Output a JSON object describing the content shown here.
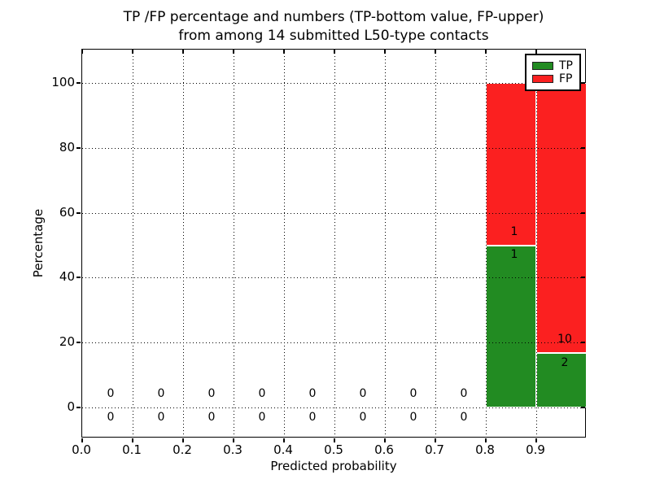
{
  "figure": {
    "background": "#ffffff",
    "accent_black": "#000000"
  },
  "chart_data": {
    "type": "bar",
    "subtype": "stacked-histogram",
    "title_lines": [
      "TP /FP percentage and numbers (TP-bottom value, FP-upper)",
      "from among 14 submitted L50-type contacts"
    ],
    "xlabel": "Predicted probability",
    "ylabel": "Percentage",
    "total_contacts": 14,
    "xlim": [
      0.0,
      1.0
    ],
    "ylim": [
      -9.6,
      110.3
    ],
    "xticks": {
      "values": [
        0.0,
        0.1,
        0.2,
        0.3,
        0.4,
        0.5,
        0.6,
        0.7,
        0.8,
        0.9
      ],
      "labels": [
        "0.0",
        "0.1",
        "0.2",
        "0.3",
        "0.4",
        "0.5",
        "0.6",
        "0.7",
        "0.8",
        "0.9"
      ]
    },
    "yticks": {
      "values": [
        0,
        20,
        40,
        60,
        80,
        100
      ],
      "labels": [
        "0",
        "20",
        "40",
        "60",
        "80",
        "100"
      ]
    },
    "grid": {
      "visible": true,
      "style": "dotted",
      "color": "#000000"
    },
    "series": [
      {
        "name": "TP",
        "color": "#228b22"
      },
      {
        "name": "FP",
        "color": "#fb2020"
      }
    ],
    "legend": {
      "position": "upper-right",
      "entries": [
        {
          "label": "TP",
          "color": "#228b22"
        },
        {
          "label": "FP",
          "color": "#fb2020"
        }
      ]
    },
    "bins": [
      {
        "x0": 0.0,
        "x1": 0.1,
        "tp_count": 0,
        "fp_count": 0,
        "tp_pct": 0,
        "fp_pct": 0
      },
      {
        "x0": 0.1,
        "x1": 0.2,
        "tp_count": 0,
        "fp_count": 0,
        "tp_pct": 0,
        "fp_pct": 0
      },
      {
        "x0": 0.2,
        "x1": 0.3,
        "tp_count": 0,
        "fp_count": 0,
        "tp_pct": 0,
        "fp_pct": 0
      },
      {
        "x0": 0.3,
        "x1": 0.4,
        "tp_count": 0,
        "fp_count": 0,
        "tp_pct": 0,
        "fp_pct": 0
      },
      {
        "x0": 0.4,
        "x1": 0.5,
        "tp_count": 0,
        "fp_count": 0,
        "tp_pct": 0,
        "fp_pct": 0
      },
      {
        "x0": 0.5,
        "x1": 0.6,
        "tp_count": 0,
        "fp_count": 0,
        "tp_pct": 0,
        "fp_pct": 0
      },
      {
        "x0": 0.6,
        "x1": 0.7,
        "tp_count": 0,
        "fp_count": 0,
        "tp_pct": 0,
        "fp_pct": 0
      },
      {
        "x0": 0.7,
        "x1": 0.8,
        "tp_count": 0,
        "fp_count": 0,
        "tp_pct": 0,
        "fp_pct": 0
      },
      {
        "x0": 0.8,
        "x1": 0.9,
        "tp_count": 1,
        "fp_count": 1,
        "tp_pct": 50.0,
        "fp_pct": 50.0
      },
      {
        "x0": 0.9,
        "x1": 1.0,
        "tp_count": 2,
        "fp_count": 10,
        "tp_pct": 16.7,
        "fp_pct": 83.3
      }
    ]
  }
}
